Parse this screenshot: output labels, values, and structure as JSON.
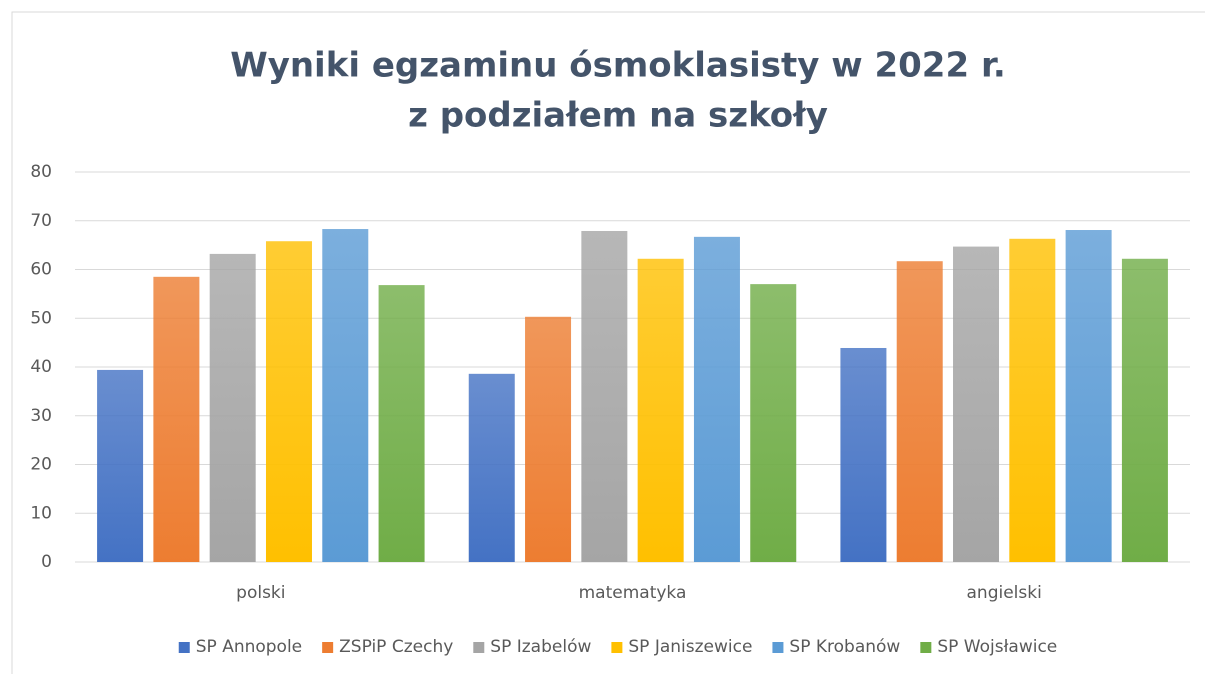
{
  "chart_data": {
    "type": "bar",
    "title": [
      "Wyniki egzaminu ósmoklasisty w 2022 r.",
      "z podziałem na szkoły"
    ],
    "categories": [
      "polski",
      "matematyka",
      "angielski"
    ],
    "series": [
      {
        "name": "SP Annopole",
        "color": "#4472c4",
        "values": [
          39.4,
          38.6,
          43.9
        ]
      },
      {
        "name": "ZSPiP Czechy",
        "color": "#ed7d31",
        "values": [
          58.5,
          50.3,
          61.7
        ]
      },
      {
        "name": "SP Izabelów",
        "color": "#a5a5a5",
        "values": [
          63.2,
          67.9,
          64.7
        ]
      },
      {
        "name": "SP Janiszewice",
        "color": "#ffc000",
        "values": [
          65.8,
          62.2,
          66.3
        ]
      },
      {
        "name": "SP Krobanów",
        "color": "#5b9bd5",
        "values": [
          68.3,
          66.7,
          68.1
        ]
      },
      {
        "name": "SP Wojsławice",
        "color": "#70ad47",
        "values": [
          56.8,
          57.0,
          62.2
        ]
      }
    ],
    "ylim": [
      0,
      80
    ],
    "yticks": [
      0,
      10,
      20,
      30,
      40,
      50,
      60,
      70,
      80
    ],
    "grid": true,
    "legend": "bottom"
  }
}
